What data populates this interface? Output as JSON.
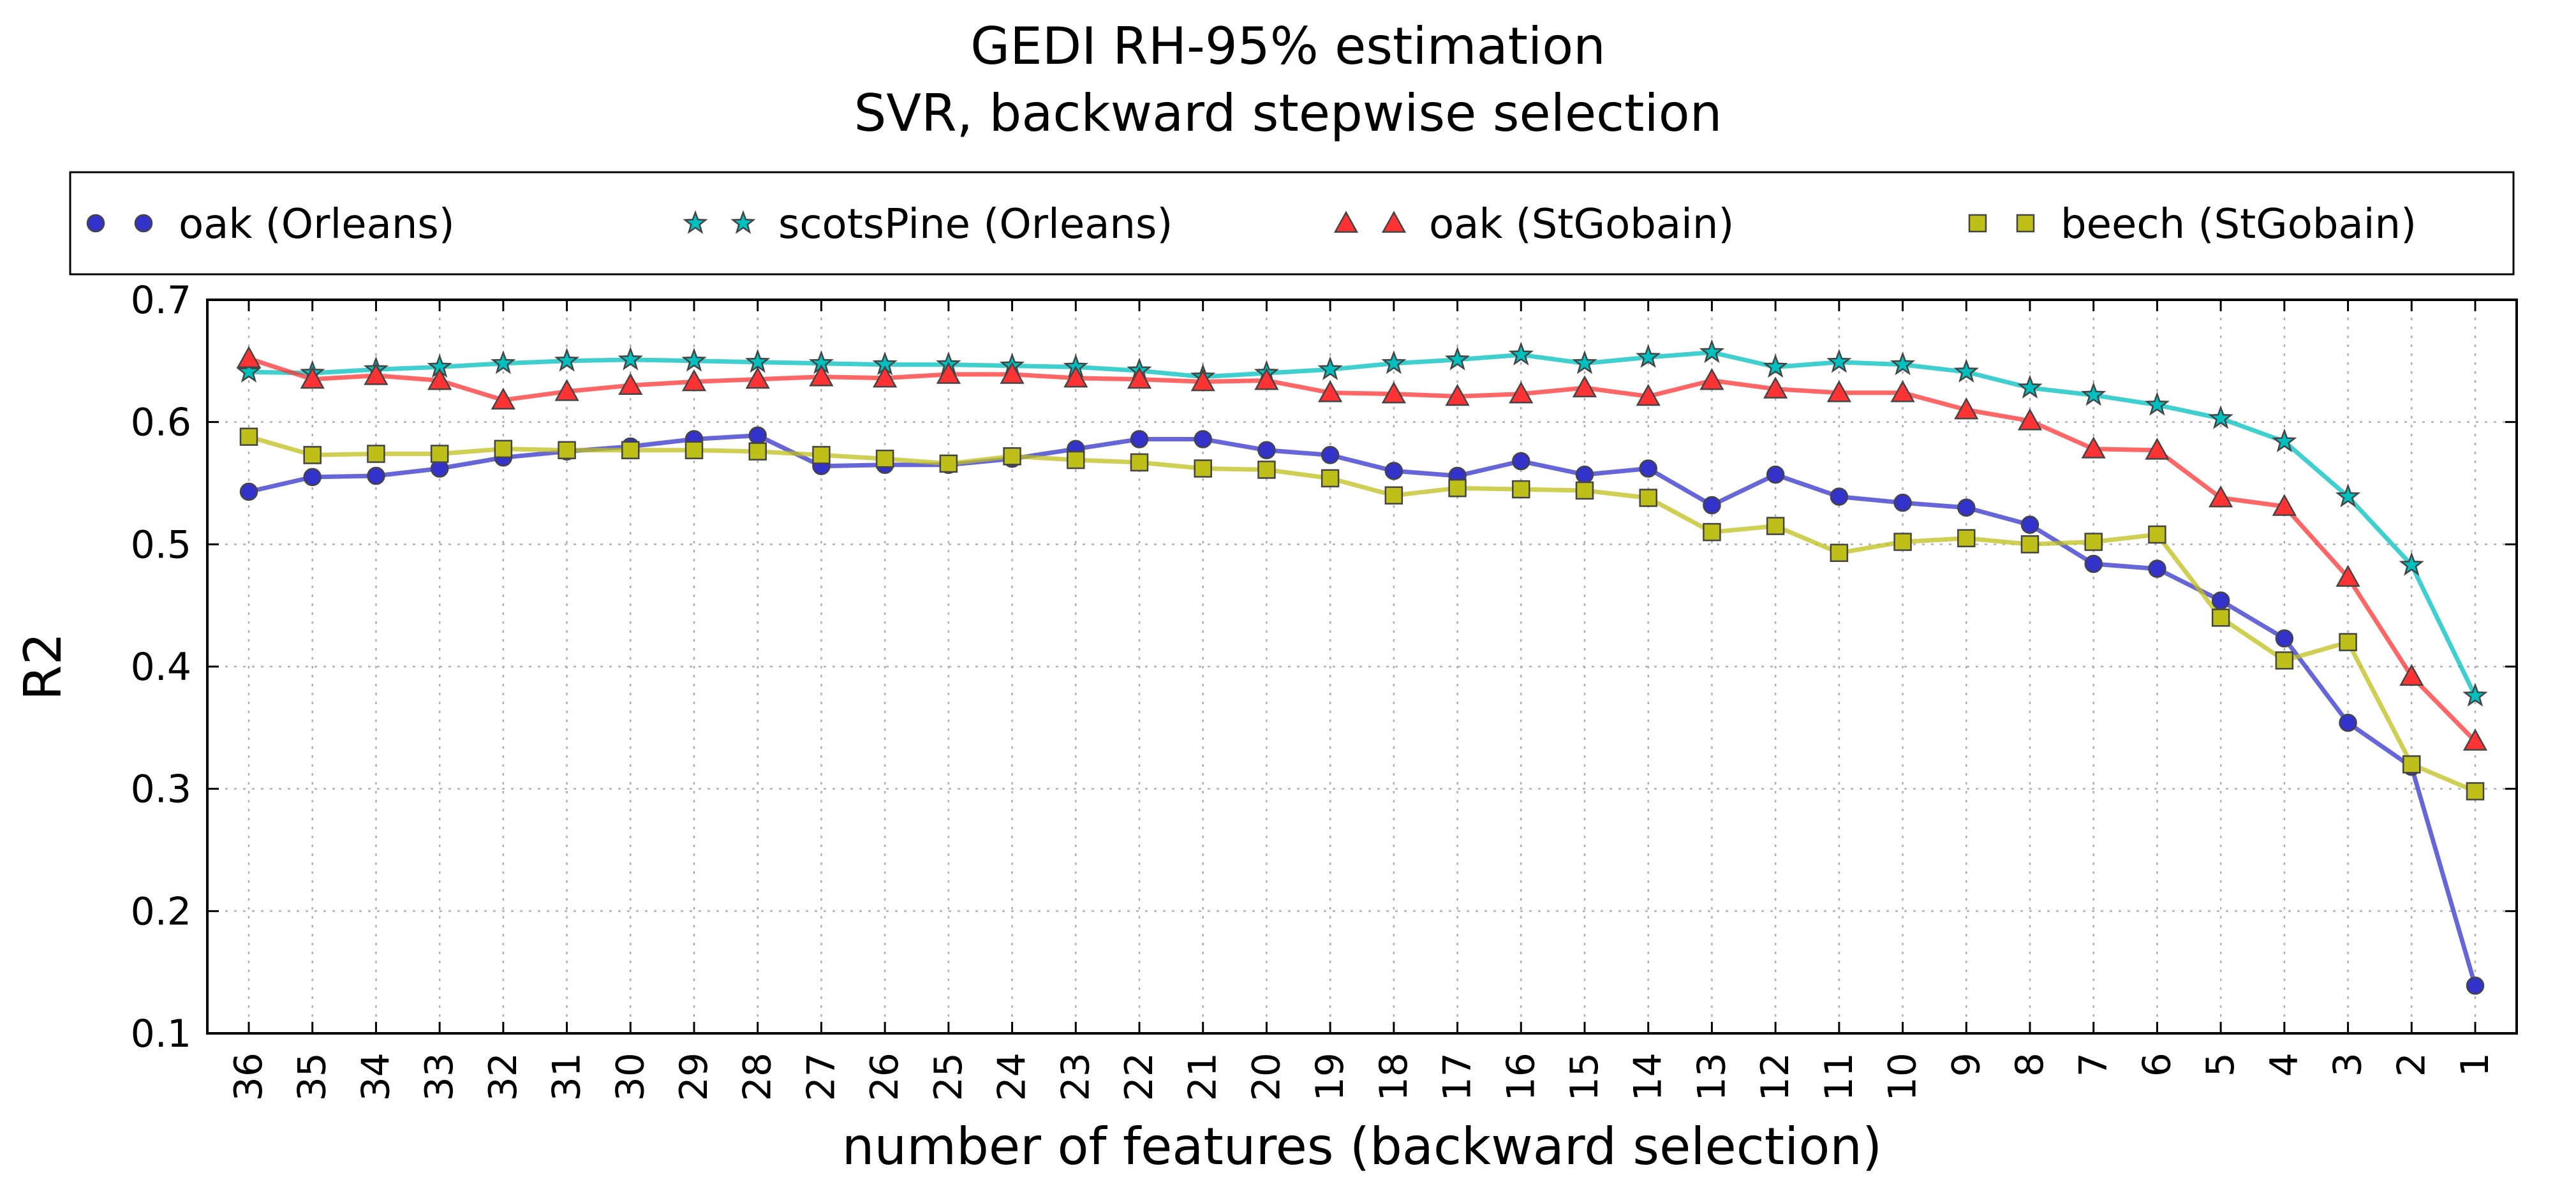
{
  "chart_data": {
    "type": "line",
    "title": "GEDI RH-95% estimation",
    "subtitle": "SVR, backward stepwise selection",
    "xlabel": "number of features (backward selection)",
    "ylabel": "R2",
    "ylim": [
      0.1,
      0.7
    ],
    "yticks": [
      "0.1",
      "0.2",
      "0.3",
      "0.4",
      "0.5",
      "0.6",
      "0.7"
    ],
    "grid": true,
    "legend_position": "top",
    "categories": [
      "36",
      "35",
      "34",
      "33",
      "32",
      "31",
      "30",
      "29",
      "28",
      "27",
      "26",
      "25",
      "24",
      "23",
      "22",
      "21",
      "20",
      "19",
      "18",
      "17",
      "16",
      "15",
      "14",
      "13",
      "12",
      "11",
      "10",
      "9",
      "8",
      "7",
      "6",
      "5",
      "4",
      "3",
      "2",
      "1"
    ],
    "series": [
      {
        "name": "oak (Orleans)",
        "color": "#3333cc",
        "marker": "circle",
        "values": [
          0.543,
          0.555,
          0.556,
          0.562,
          0.571,
          0.576,
          0.58,
          0.586,
          0.589,
          0.564,
          0.565,
          0.565,
          0.57,
          0.578,
          0.586,
          0.586,
          0.577,
          0.573,
          0.56,
          0.556,
          0.568,
          0.557,
          0.562,
          0.532,
          0.557,
          0.539,
          0.534,
          0.53,
          0.516,
          0.484,
          0.48,
          0.454,
          0.423,
          0.354,
          0.318,
          0.139
        ]
      },
      {
        "name": "scotsPine (Orleans)",
        "color": "#00bfbf",
        "marker": "star",
        "values": [
          0.641,
          0.64,
          0.643,
          0.645,
          0.648,
          0.65,
          0.651,
          0.65,
          0.649,
          0.648,
          0.647,
          0.647,
          0.646,
          0.645,
          0.642,
          0.637,
          0.64,
          0.643,
          0.648,
          0.651,
          0.655,
          0.648,
          0.653,
          0.657,
          0.645,
          0.649,
          0.647,
          0.641,
          0.628,
          0.622,
          0.614,
          0.603,
          0.584,
          0.539,
          0.483,
          0.376
        ]
      },
      {
        "name": "oak (StGobain)",
        "color": "#ff3333",
        "marker": "triangle",
        "values": [
          0.652,
          0.635,
          0.638,
          0.634,
          0.618,
          0.625,
          0.63,
          0.633,
          0.635,
          0.637,
          0.636,
          0.639,
          0.639,
          0.636,
          0.635,
          0.633,
          0.634,
          0.624,
          0.623,
          0.621,
          0.623,
          0.628,
          0.621,
          0.634,
          0.627,
          0.624,
          0.624,
          0.61,
          0.601,
          0.578,
          0.577,
          0.538,
          0.531,
          0.473,
          0.392,
          0.339
        ]
      },
      {
        "name": "beech (StGobain)",
        "color": "#bfbf1a",
        "marker": "square",
        "values": [
          0.588,
          0.573,
          0.574,
          0.574,
          0.578,
          0.577,
          0.577,
          0.577,
          0.576,
          0.573,
          0.57,
          0.566,
          0.572,
          0.569,
          0.567,
          0.562,
          0.561,
          0.554,
          0.54,
          0.546,
          0.545,
          0.544,
          0.538,
          0.51,
          0.515,
          0.493,
          0.502,
          0.505,
          0.5,
          0.502,
          0.508,
          0.44,
          0.405,
          0.42,
          0.32,
          0.298
        ]
      }
    ]
  }
}
